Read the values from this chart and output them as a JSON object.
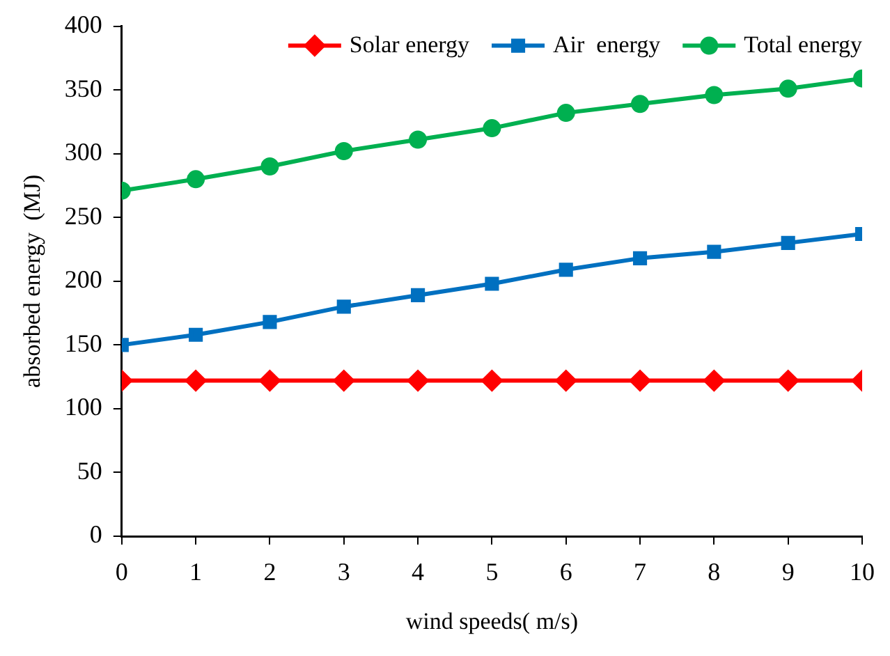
{
  "chart_data": {
    "type": "line",
    "xlabel": "wind speeds( m/s)",
    "ylabel": "absorbed energy  (MJ)",
    "x": [
      0,
      1,
      2,
      3,
      4,
      5,
      6,
      7,
      8,
      9,
      10
    ],
    "series": [
      {
        "name": "Solar energy",
        "color": "#ff0000",
        "marker": "diamond",
        "values": [
          122,
          122,
          122,
          122,
          122,
          122,
          122,
          122,
          122,
          122,
          122
        ]
      },
      {
        "name": "Air  energy",
        "color": "#0070c0",
        "marker": "square",
        "values": [
          150,
          158,
          168,
          180,
          189,
          198,
          209,
          218,
          223,
          230,
          237
        ]
      },
      {
        "name": "Total energy",
        "color": "#00b050",
        "marker": "circle",
        "values": [
          271,
          280,
          290,
          302,
          311,
          320,
          332,
          339,
          346,
          351,
          359
        ]
      }
    ],
    "xlim": [
      0,
      10
    ],
    "xticks": [
      0,
      1,
      2,
      3,
      4,
      5,
      6,
      7,
      8,
      9,
      10
    ],
    "ylim": [
      0,
      400
    ],
    "yticks": [
      0,
      50,
      100,
      150,
      200,
      250,
      300,
      350,
      400
    ],
    "grid": false,
    "legend": "top right",
    "line_style": "solid"
  }
}
